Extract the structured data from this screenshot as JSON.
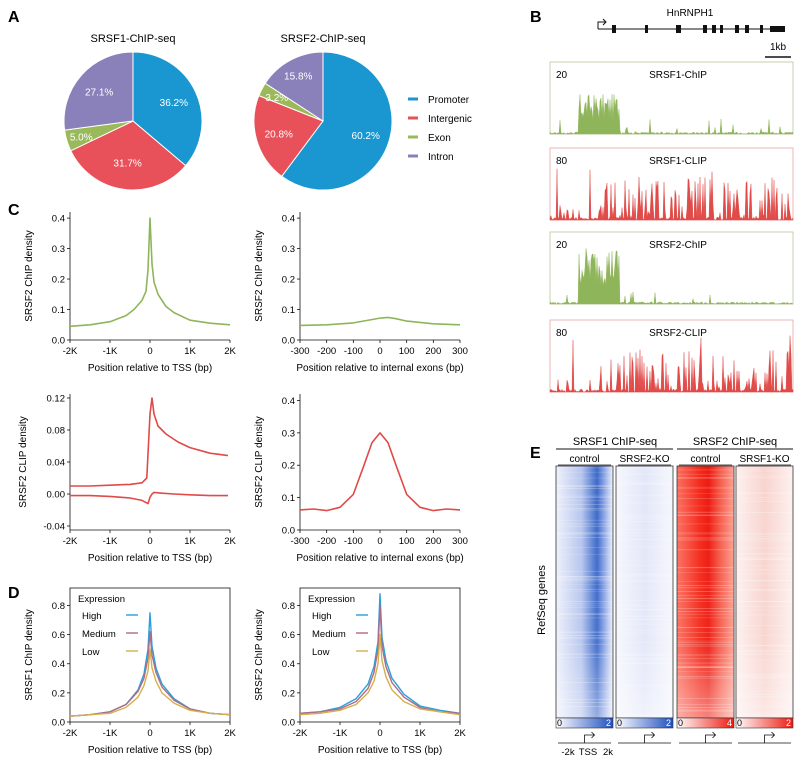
{
  "panels": {
    "A": {
      "label": "A"
    },
    "B": {
      "label": "B"
    },
    "C": {
      "label": "C"
    },
    "D": {
      "label": "D"
    },
    "E": {
      "label": "E"
    }
  },
  "colors": {
    "promoter": "#1a96d0",
    "intergenic": "#e8505a",
    "exon": "#9ab95a",
    "intron": "#8a80ba",
    "chip_green": "#8fb55a",
    "clip_red": "#e04a48",
    "high": "#2a9fd8",
    "medium": "#b06a8a",
    "low": "#d4b04a",
    "heat_blue": "#2f5fc8",
    "heat_red": "#f02418"
  },
  "chart_data": [
    {
      "id": "A1",
      "type": "pie",
      "title": "SRSF1-ChIP-seq",
      "categories": [
        "Promoter",
        "Intergenic",
        "Exon",
        "Intron"
      ],
      "values": [
        36.2,
        31.7,
        5.0,
        27.1
      ],
      "labels": [
        "36.2%",
        "31.7%",
        "5.0%",
        "27.1%"
      ]
    },
    {
      "id": "A2",
      "type": "pie",
      "title": "SRSF2-ChIP-seq",
      "categories": [
        "Promoter",
        "Intergenic",
        "Exon",
        "Intron"
      ],
      "values": [
        60.2,
        20.8,
        3.2,
        15.8
      ],
      "labels": [
        "60.2%",
        "20.8%",
        "3.2%",
        "15.8%"
      ],
      "legend": [
        "Promoter",
        "Intergenic",
        "Exon",
        "Intron"
      ]
    },
    {
      "id": "B",
      "type": "area",
      "gene": "HnRNPH1",
      "scale_label": "1kb",
      "tracks": [
        {
          "name": "SRSF1-ChIP",
          "max": "20"
        },
        {
          "name": "SRSF1-CLIP",
          "max": "80"
        },
        {
          "name": "SRSF2-ChIP",
          "max": "20"
        },
        {
          "name": "SRSF2-CLIP",
          "max": "80"
        }
      ]
    },
    {
      "id": "C1",
      "type": "line",
      "xlabel": "Position relative to TSS (bp)",
      "ylabel": "SRSF2 ChIP density",
      "xticks": [
        "-2K",
        "-1K",
        "0",
        "1K",
        "2K"
      ],
      "yticks": [
        "0.0",
        "0.1",
        "0.2",
        "0.3",
        "0.4"
      ],
      "xlim": [
        -2000,
        2000
      ],
      "ylim": [
        0,
        0.42
      ],
      "x": [
        -2000,
        -1500,
        -1000,
        -600,
        -400,
        -200,
        -100,
        -50,
        0,
        50,
        100,
        200,
        400,
        600,
        1000,
        1500,
        2000
      ],
      "values": [
        0.045,
        0.05,
        0.06,
        0.08,
        0.1,
        0.13,
        0.16,
        0.23,
        0.4,
        0.25,
        0.19,
        0.15,
        0.11,
        0.09,
        0.065,
        0.055,
        0.05
      ]
    },
    {
      "id": "C2",
      "type": "line",
      "xlabel": "Position relative to internal exons (bp)",
      "ylabel": "SRSF2 ChIP density",
      "xticks": [
        "-300",
        "-200",
        "-100",
        "0",
        "100",
        "200",
        "300"
      ],
      "yticks": [
        "0.0",
        "0.1",
        "0.2",
        "0.3",
        "0.4"
      ],
      "xlim": [
        -300,
        300
      ],
      "ylim": [
        0,
        0.42
      ],
      "x": [
        -300,
        -200,
        -100,
        -50,
        0,
        30,
        60,
        100,
        200,
        300
      ],
      "values": [
        0.048,
        0.05,
        0.056,
        0.064,
        0.072,
        0.074,
        0.07,
        0.062,
        0.053,
        0.05
      ]
    },
    {
      "id": "C3",
      "type": "line",
      "xlabel": "Position relative to TSS (bp)",
      "ylabel": "SRSF2 CLIP density",
      "xticks": [
        "-2K",
        "-1K",
        "0",
        "1K",
        "2K"
      ],
      "yticks": [
        "-0.04",
        "0.00",
        "0.04",
        "0.08",
        "0.12"
      ],
      "xlim": [
        -2000,
        2000
      ],
      "ylim": [
        -0.045,
        0.125
      ],
      "series": [
        {
          "x": [
            -2000,
            -1500,
            -1000,
            -500,
            -200,
            -80,
            0,
            50,
            100,
            200,
            400,
            700,
            1000,
            1500,
            1950
          ],
          "values": [
            0.01,
            0.01,
            0.011,
            0.012,
            0.014,
            0.02,
            0.1,
            0.12,
            0.1,
            0.085,
            0.075,
            0.065,
            0.058,
            0.051,
            0.048
          ]
        },
        {
          "x": [
            -2000,
            -1500,
            -1000,
            -500,
            -200,
            -50,
            0,
            50,
            100,
            300,
            600,
            1000,
            1500,
            1950
          ],
          "values": [
            -0.002,
            -0.002,
            -0.003,
            -0.005,
            -0.008,
            -0.012,
            -0.004,
            0.0,
            0.002,
            0.001,
            0.0,
            -0.001,
            -0.002,
            -0.002
          ]
        }
      ]
    },
    {
      "id": "C4",
      "type": "line",
      "xlabel": "Position relative to internal exons (bp)",
      "ylabel": "SRSF2 CLIP density",
      "xticks": [
        "-300",
        "-200",
        "-100",
        "0",
        "100",
        "200",
        "300"
      ],
      "yticks": [
        "0.0",
        "0.1",
        "0.2",
        "0.3",
        "0.4"
      ],
      "xlim": [
        -300,
        300
      ],
      "ylim": [
        0,
        0.42
      ],
      "x": [
        -300,
        -250,
        -200,
        -150,
        -100,
        -60,
        -30,
        0,
        30,
        60,
        100,
        150,
        200,
        250,
        300
      ],
      "values": [
        0.062,
        0.065,
        0.06,
        0.07,
        0.11,
        0.2,
        0.27,
        0.3,
        0.27,
        0.2,
        0.11,
        0.07,
        0.06,
        0.065,
        0.062
      ]
    },
    {
      "id": "D1",
      "type": "line",
      "xlabel": "Position relative to TSS (bp)",
      "ylabel": "SRSF1 ChIP density",
      "xticks": [
        "-2K",
        "-1K",
        "0",
        "1K",
        "2K"
      ],
      "yticks": [
        "0.0",
        "0.2",
        "0.4",
        "0.6",
        "0.8"
      ],
      "xlim": [
        -2000,
        2000
      ],
      "ylim": [
        0,
        0.92
      ],
      "legend_title": "Expression",
      "x": [
        -2000,
        -1500,
        -1000,
        -600,
        -300,
        -150,
        -50,
        0,
        50,
        150,
        300,
        600,
        1000,
        1500,
        2000
      ],
      "series": [
        {
          "name": "High",
          "values": [
            0.04,
            0.05,
            0.07,
            0.12,
            0.22,
            0.33,
            0.5,
            0.75,
            0.52,
            0.37,
            0.26,
            0.16,
            0.09,
            0.06,
            0.05
          ]
        },
        {
          "name": "Medium",
          "values": [
            0.04,
            0.05,
            0.07,
            0.12,
            0.21,
            0.3,
            0.44,
            0.62,
            0.46,
            0.34,
            0.24,
            0.15,
            0.09,
            0.06,
            0.05
          ]
        },
        {
          "name": "Low",
          "values": [
            0.04,
            0.05,
            0.06,
            0.1,
            0.17,
            0.25,
            0.35,
            0.5,
            0.37,
            0.28,
            0.2,
            0.13,
            0.08,
            0.06,
            0.05
          ]
        }
      ]
    },
    {
      "id": "D2",
      "type": "line",
      "xlabel": "Position relative to TSS (bp)",
      "ylabel": "SRSF2 ChIP density",
      "xticks": [
        "-2K",
        "-1K",
        "0",
        "1K",
        "2K"
      ],
      "yticks": [
        "0.0",
        "0.2",
        "0.4",
        "0.6",
        "0.8"
      ],
      "xlim": [
        -2000,
        2000
      ],
      "ylim": [
        0,
        0.92
      ],
      "x": [
        -2000,
        -1500,
        -1000,
        -600,
        -300,
        -150,
        -50,
        0,
        50,
        150,
        300,
        600,
        1000,
        1500,
        2000
      ],
      "series": [
        {
          "name": "High",
          "values": [
            0.06,
            0.07,
            0.1,
            0.16,
            0.26,
            0.38,
            0.55,
            0.88,
            0.58,
            0.42,
            0.3,
            0.19,
            0.11,
            0.08,
            0.06
          ]
        },
        {
          "name": "Medium",
          "values": [
            0.06,
            0.07,
            0.09,
            0.14,
            0.23,
            0.34,
            0.5,
            0.8,
            0.52,
            0.38,
            0.27,
            0.17,
            0.1,
            0.07,
            0.06
          ]
        },
        {
          "name": "Low",
          "values": [
            0.05,
            0.06,
            0.08,
            0.12,
            0.2,
            0.28,
            0.4,
            0.6,
            0.42,
            0.31,
            0.22,
            0.14,
            0.09,
            0.07,
            0.05
          ]
        }
      ]
    },
    {
      "id": "E",
      "type": "heatmap",
      "groups": [
        "SRSF1 ChIP-seq",
        "SRSF2 ChIP-seq"
      ],
      "columns": [
        "control",
        "SRSF2-KO",
        "control",
        "SRSF1-KO"
      ],
      "ylabel": "RefSeq genes",
      "scale_min": "0",
      "scale_max": [
        "2",
        "2",
        "4",
        "2"
      ],
      "x_labels": [
        "-2k",
        "TSS",
        "2k"
      ]
    }
  ]
}
